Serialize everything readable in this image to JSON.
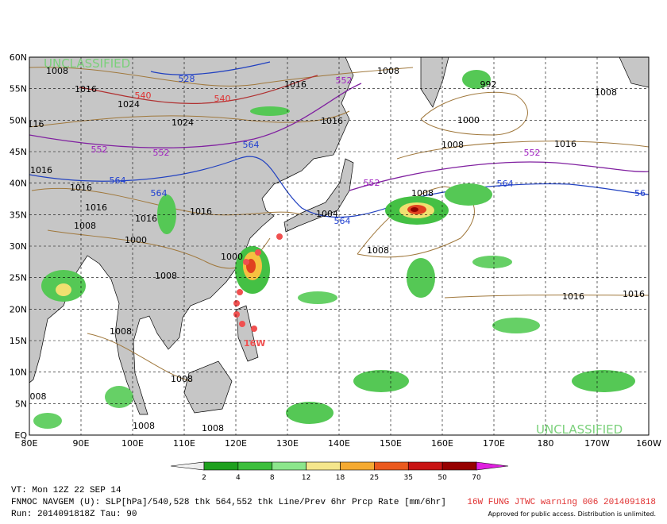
{
  "map": {
    "banner_top": "UNCLASSIFIED",
    "banner_bottom": "UNCLASSIFIED",
    "lat_labels": [
      "60N",
      "55N",
      "50N",
      "45N",
      "40N",
      "35N",
      "30N",
      "25N",
      "20N",
      "15N",
      "10N",
      "5N",
      "EQ"
    ],
    "lon_labels": [
      "80E",
      "90E",
      "100E",
      "110E",
      "120E",
      "130E",
      "140E",
      "150E",
      "160E",
      "170E",
      "180",
      "170W",
      "160W"
    ],
    "contour_labels": [
      "1008",
      "1016",
      "1024",
      "540",
      "540",
      "528",
      "1016",
      "552",
      "1008",
      "992",
      "1008",
      "1016",
      "1024",
      "1000",
      "1008",
      "1016",
      "552",
      "552",
      "564",
      "552",
      "552",
      "564",
      "564",
      "1016",
      "1016",
      "1008",
      "1016",
      "1016",
      "1008",
      "1000",
      "1008",
      "1004",
      "564",
      "1000",
      "1008",
      "1016",
      "1016",
      "1008",
      "1008",
      "008",
      "1008",
      "1008",
      "116",
      "1016",
      "56",
      "564"
    ],
    "storm_label": "16W"
  },
  "colorbar": {
    "ticks": [
      2,
      4,
      8,
      12,
      18,
      25,
      35,
      50,
      70
    ]
  },
  "footer": {
    "valid_time": "VT: Mon 12Z 22 SEP 14",
    "model": "FNMOC NAVGEM (U): SLP[hPa]/540,528 thk 564,552 thk Line/Prev 6hr Prcp Rate [mm/6hr]",
    "run": "Run: 2014091818Z Tau: 90",
    "warning": "16W FUNG JTWC warning 006 2014091818",
    "approval": "Approved for public access. Distribution is unlimited."
  }
}
